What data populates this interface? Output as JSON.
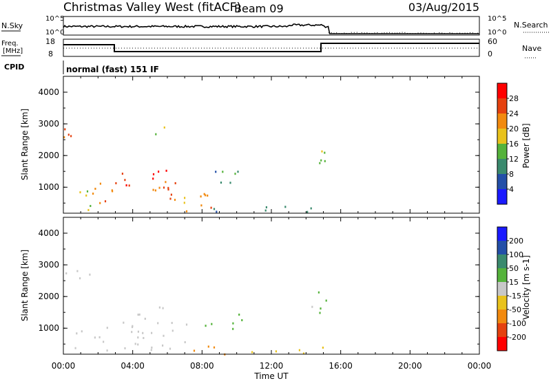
{
  "header": {
    "site": "Christmas Valley West (fitACF)",
    "beam": "Beam 09",
    "date": "03/Aug/2015"
  },
  "top_panel": {
    "left_label": "N.Sky",
    "right_label": "N.Search",
    "left_ticks": [
      "10^5",
      "10^0"
    ],
    "right_ticks": [
      "10^5",
      "10^0"
    ]
  },
  "freq_panel": {
    "left_label_1": "Freq.",
    "left_label_2": "[MHz]",
    "right_label": "Nave",
    "left_ticks": [
      "18",
      "8"
    ],
    "right_ticks": [
      "60",
      "0"
    ]
  },
  "cpid": {
    "label": "CPID",
    "mode": "normal (fast) 151 IF"
  },
  "xaxis": {
    "label": "Time UT",
    "ticks": [
      "00:00",
      "04:00",
      "08:00",
      "12:00",
      "16:00",
      "20:00",
      "00:00"
    ]
  },
  "yaxis": {
    "label": "Slant Range [km]",
    "ticks": [
      "1000",
      "2000",
      "3000",
      "4000"
    ]
  },
  "power_scale": {
    "label": "Power [dB]",
    "ticks": [
      "4",
      "8",
      "12",
      "16",
      "20",
      "24",
      "28"
    ],
    "colors": [
      "#1a1aff",
      "#234fa8",
      "#3a8a6e",
      "#55b33b",
      "#e9c21c",
      "#f28a0f",
      "#e5410f",
      "#ff0000"
    ]
  },
  "velocity_scale": {
    "label": "Velocity [m s-1]",
    "ticks": [
      "200",
      "100",
      "50",
      "15",
      "-15",
      "-50",
      "-100",
      "-200"
    ],
    "colors": [
      "#1a1aff",
      "#234fa8",
      "#3a8a6e",
      "#55b33b",
      "#c8c8c8",
      "#e9c21c",
      "#f28a0f",
      "#e5410f",
      "#ff0000"
    ]
  },
  "chart_data": [
    {
      "type": "heatmap",
      "title": "Power",
      "xlabel": "Time UT",
      "ylabel": "Slant Range [km]",
      "xlim": [
        0,
        24
      ],
      "ylim": [
        180,
        4500
      ],
      "colorbar_label": "Power [dB]",
      "regions": [
        {
          "t0": 0.0,
          "t1": 2.3,
          "r0": 2550,
          "r1": 3000,
          "value": 22
        },
        {
          "t0": 0.4,
          "t1": 2.0,
          "r0": 300,
          "r1": 1100,
          "value": 16
        },
        {
          "t0": 1.5,
          "t1": 7.2,
          "r0": 500,
          "r1": 1200,
          "value": 22
        },
        {
          "t0": 3.1,
          "t1": 6.0,
          "r0": 1050,
          "r1": 1700,
          "value": 28
        },
        {
          "t0": 5.0,
          "t1": 7.2,
          "r0": 900,
          "r1": 1500,
          "value": 24
        },
        {
          "t0": 6.0,
          "t1": 8.5,
          "r0": 250,
          "r1": 900,
          "value": 24
        },
        {
          "t0": 8.0,
          "t1": 10.3,
          "r0": 1000,
          "r1": 1600,
          "value": 10
        },
        {
          "t0": 8.5,
          "t1": 15.3,
          "r0": 200,
          "r1": 450,
          "value": 8
        },
        {
          "t0": 14.2,
          "t1": 15.3,
          "r0": 1500,
          "r1": 2700,
          "value": 14
        },
        {
          "t0": 5.1,
          "t1": 6.3,
          "r0": 2600,
          "r1": 3100,
          "value": 18
        }
      ]
    },
    {
      "type": "heatmap",
      "title": "Velocity",
      "xlabel": "Time UT",
      "ylabel": "Slant Range [km]",
      "xlim": [
        0,
        24
      ],
      "ylim": [
        180,
        4500
      ],
      "colorbar_label": "Velocity [m s-1]",
      "regions": [
        {
          "t0": 0.0,
          "t1": 2.3,
          "r0": 2550,
          "r1": 3000,
          "value": 0
        },
        {
          "t0": 0.4,
          "t1": 7.2,
          "r0": 300,
          "r1": 1300,
          "value": 0
        },
        {
          "t0": 3.1,
          "t1": 6.0,
          "r0": 1050,
          "r1": 1700,
          "value": 0
        },
        {
          "t0": 8.0,
          "t1": 10.3,
          "r0": 1000,
          "r1": 1600,
          "value": 30
        },
        {
          "t0": 6.5,
          "t1": 10.0,
          "r0": 200,
          "r1": 500,
          "value": -60
        },
        {
          "t0": 10.0,
          "t1": 15.3,
          "r0": 200,
          "r1": 420,
          "value": -30
        },
        {
          "t0": 14.2,
          "t1": 15.3,
          "r0": 1500,
          "r1": 2700,
          "value": 20
        }
      ]
    }
  ]
}
